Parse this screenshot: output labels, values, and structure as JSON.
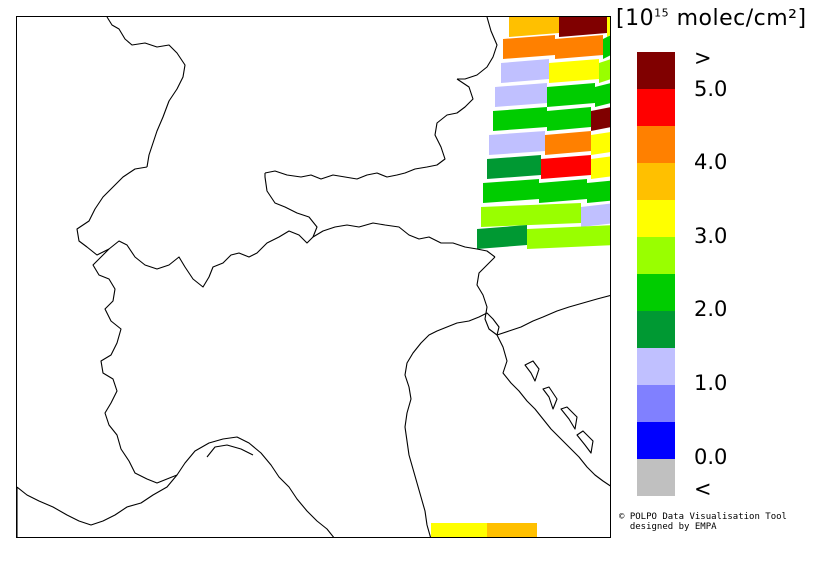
{
  "legend": {
    "unit_prefix": "10",
    "unit_exponent": "15",
    "unit_suffix": " molec/cm²",
    "colors": [
      "#800000",
      "#ff0000",
      "#ff8000",
      "#ffc000",
      "#ffff00",
      "#99ff00",
      "#00cc00",
      "#009933",
      "#c0c0ff",
      "#8080ff",
      "#0000ff",
      "#c0c0c0"
    ],
    "labels": [
      ">",
      "5.0",
      "4.0",
      "3.0",
      "2.0",
      "1.0",
      "0.0",
      "<"
    ]
  },
  "credits": {
    "line1": "© POLPO Data Visualisation Tool",
    "line2": "designed by EMPA"
  },
  "swaths": {
    "colors": [
      "#ffc000",
      "#ff8000",
      "#c0c0ff",
      "#00cc00",
      "#009933",
      "#99ff00",
      "#ffff00",
      "#ff0000",
      "#800000"
    ]
  }
}
